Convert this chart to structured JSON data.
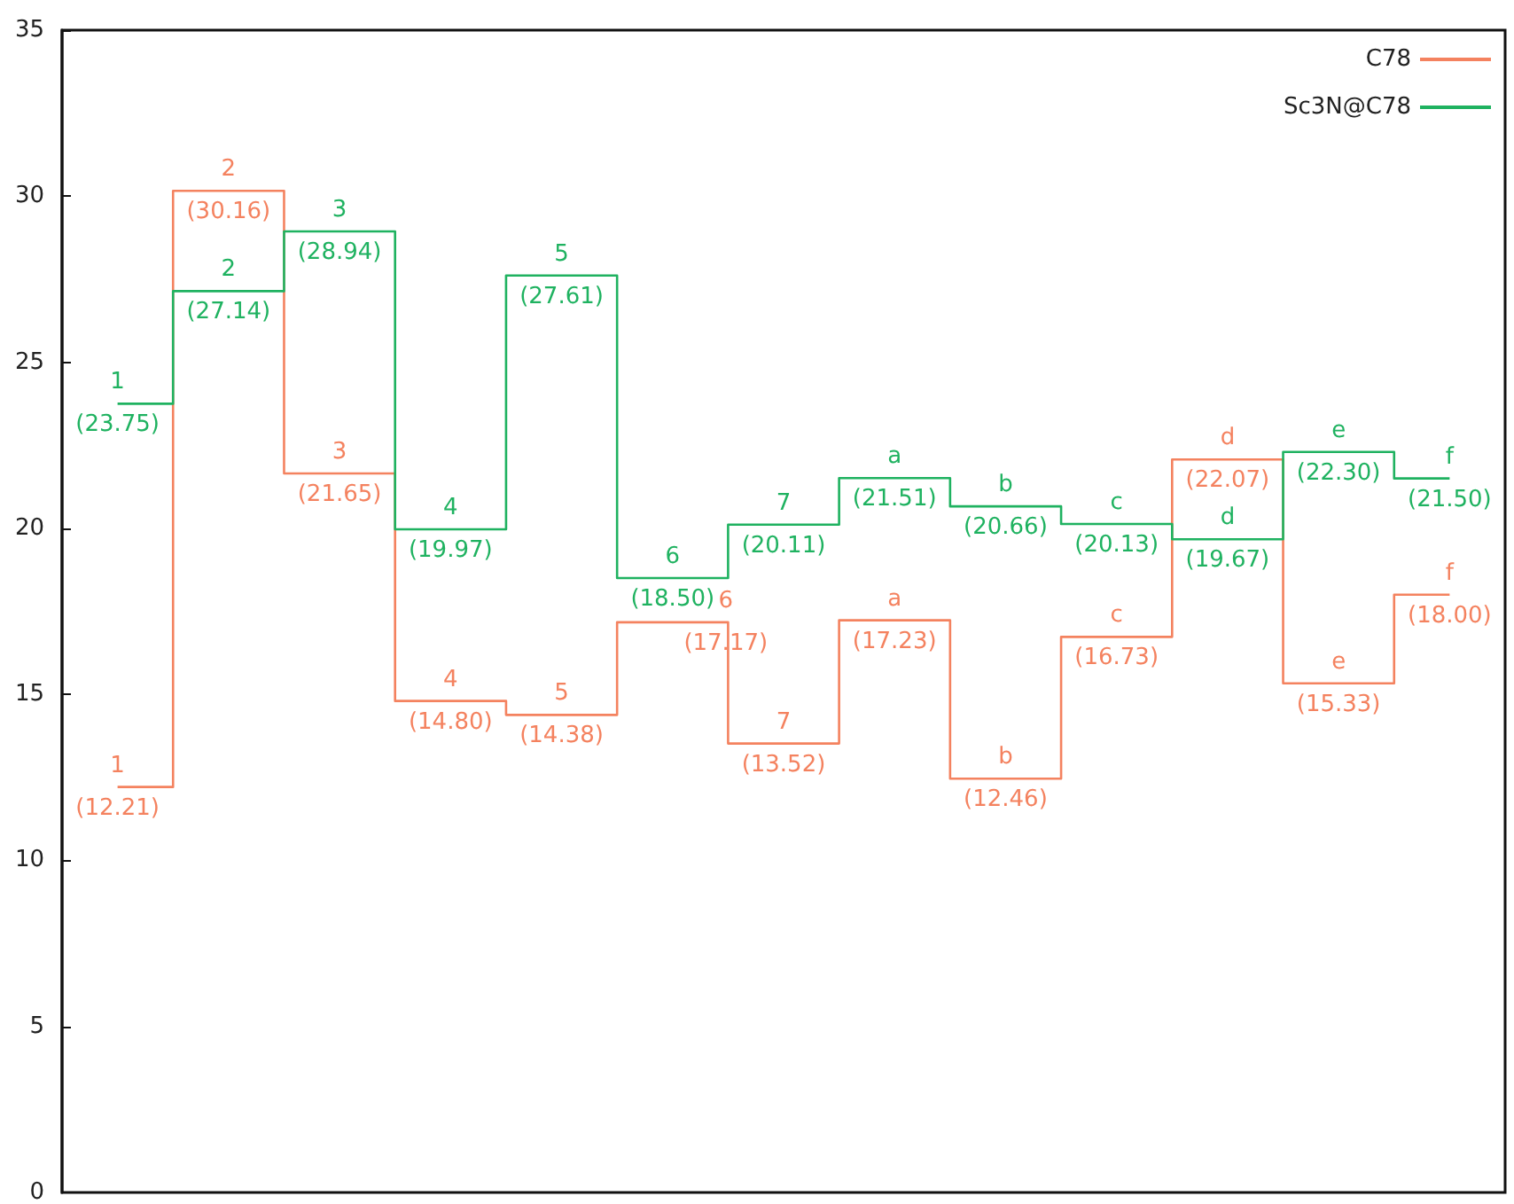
{
  "chart_data": {
    "type": "step",
    "categories": [
      null,
      null,
      null,
      null,
      null,
      null,
      null,
      null,
      null,
      null,
      null,
      null,
      null
    ],
    "ylim": [
      0,
      35
    ],
    "yticks": [
      0,
      5,
      10,
      15,
      20,
      25,
      30,
      35
    ],
    "grid": false,
    "legend": "top right",
    "marker": "none",
    "line_style": "solid",
    "series": [
      {
        "name": "C78",
        "color": "#f4825f",
        "values": [
          12.21,
          30.16,
          21.65,
          14.8,
          14.38,
          17.17,
          13.52,
          17.23,
          12.46,
          16.73,
          22.07,
          15.33,
          18.0
        ],
        "value_labels": [
          "1\n(12.21)",
          "2\n(30.16)",
          "3\n(21.65)",
          "4\n(14.80)",
          "5\n(14.38)",
          "6\n(17.17)",
          "7\n(13.52)",
          "a\n(17.23)",
          "b\n(12.46)",
          "c\n(16.73)",
          "d\n(22.07)",
          "e\n(15.33)",
          "f\n(18.00)"
        ]
      },
      {
        "name": "Sc3N@C78",
        "color": "#1fb260",
        "values": [
          23.75,
          27.14,
          28.94,
          19.97,
          27.61,
          18.5,
          20.11,
          21.51,
          20.66,
          20.13,
          19.67,
          22.3,
          21.5
        ],
        "value_labels": [
          "1\n(23.75)",
          "2\n(27.14)",
          "3\n(28.94)",
          "4\n(19.97)",
          "5\n(27.61)",
          "6\n(18.50)",
          "7\n(20.11)",
          "a\n(21.51)",
          "b\n(20.66)",
          "c\n(20.13)",
          "d\n(19.67)",
          "e\n(22.30)",
          "f\n(21.50)"
        ]
      }
    ]
  }
}
